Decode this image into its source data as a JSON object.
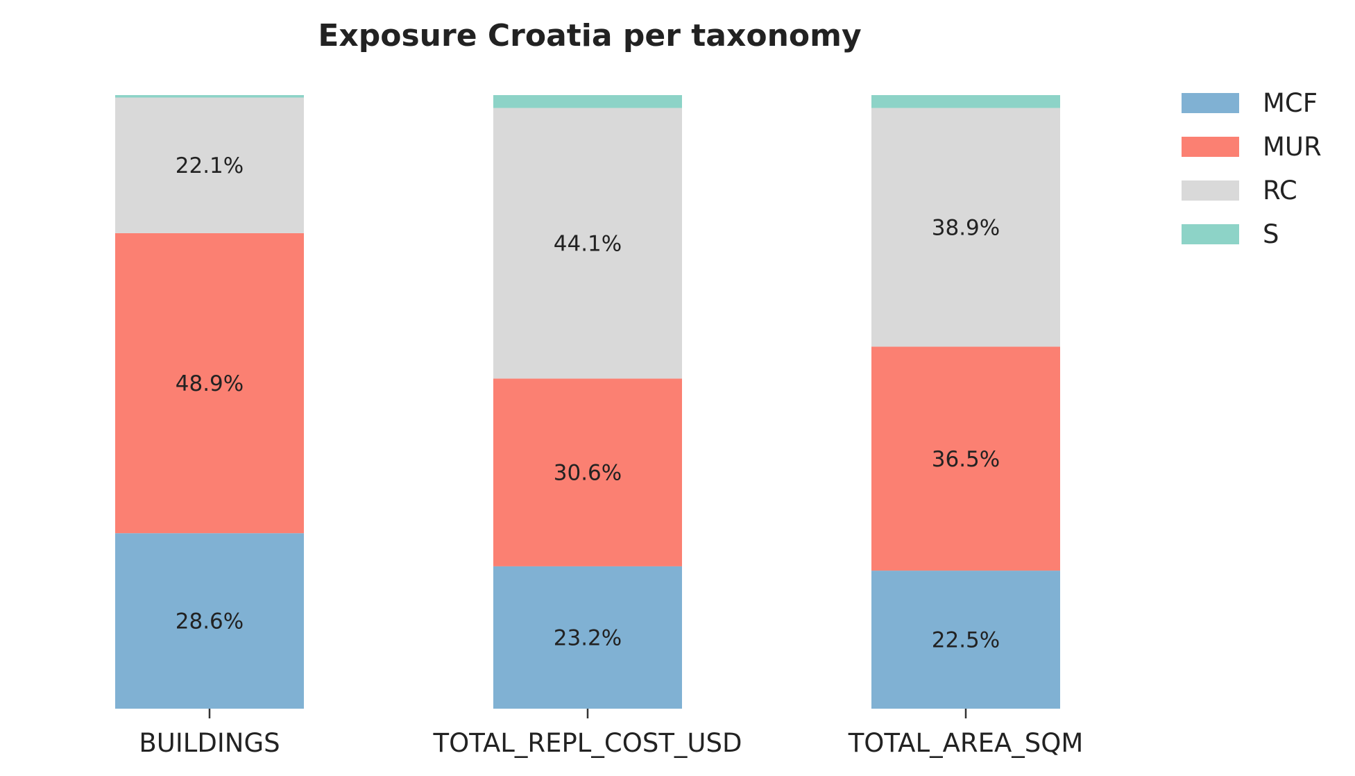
{
  "chart_data": {
    "type": "bar",
    "stacked": true,
    "normalized_percent": true,
    "title": "Exposure Croatia per taxonomy",
    "xlabel": "",
    "ylabel": "",
    "ylim": [
      0,
      100
    ],
    "grid": false,
    "legend_position": "top-right (outside plot)",
    "categories": [
      "BUILDINGS",
      "TOTAL_REPL_COST_USD",
      "TOTAL_AREA_SQM"
    ],
    "series": [
      {
        "name": "MCF",
        "color": "#80b1d3",
        "values": [
          28.6,
          23.2,
          22.5
        ],
        "labels": [
          "28.6%",
          "23.2%",
          "22.5%"
        ]
      },
      {
        "name": "MUR",
        "color": "#fb8072",
        "values": [
          48.9,
          30.6,
          36.5
        ],
        "labels": [
          "48.9%",
          "30.6%",
          "36.5%"
        ]
      },
      {
        "name": "RC",
        "color": "#d9d9d9",
        "values": [
          22.1,
          44.1,
          38.9
        ],
        "labels": [
          "22.1%",
          "44.1%",
          "38.9%"
        ]
      },
      {
        "name": "S",
        "color": "#8dd3c7",
        "values": [
          0.4,
          2.1,
          2.1
        ],
        "labels": [
          "",
          "",
          ""
        ]
      }
    ]
  }
}
